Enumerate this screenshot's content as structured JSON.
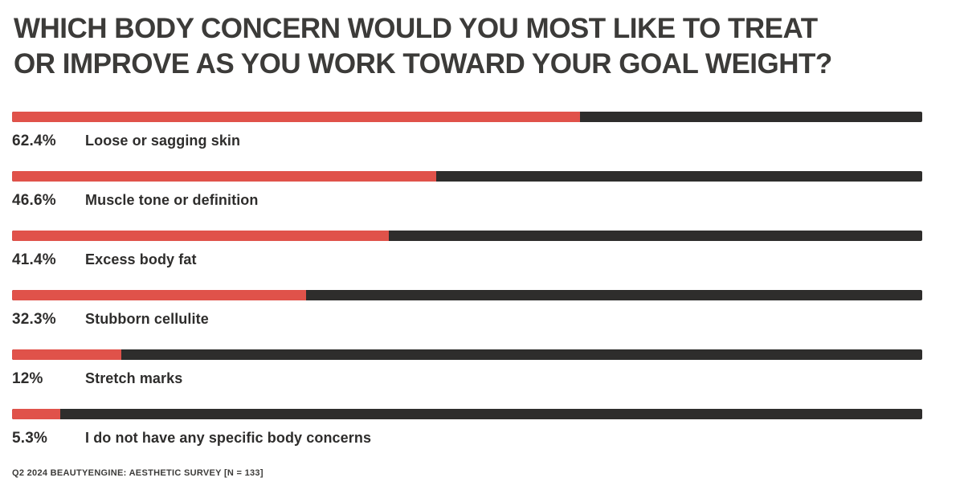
{
  "header": {
    "title": "WHICH BODY CONCERN WOULD YOU MOST LIKE TO TREAT OR IMPROVE AS YOU WORK TOWARD YOUR GOAL WEIGHT?"
  },
  "footer": {
    "source": "Q2 2024 BEAUTYENGINE: AESTHETIC SURVEY [n = 133]"
  },
  "colors": {
    "bar_fill": "#e0524a",
    "bar_track": "#2e2d2c",
    "title_text": "#3c3b39",
    "label_text": "#2e2d2c",
    "background": "#ffffff"
  },
  "chart_data": {
    "type": "bar",
    "orientation": "horizontal",
    "title": "WHICH BODY CONCERN WOULD YOU MOST LIKE TO TREAT OR IMPROVE AS YOU WORK TOWARD YOUR GOAL WEIGHT?",
    "categories": [
      "Loose or sagging skin",
      "Muscle tone or definition",
      "Excess body fat",
      "Stubborn cellulite",
      "Stretch marks",
      "I do not have any specific body concerns"
    ],
    "values": [
      62.4,
      46.6,
      41.4,
      32.3,
      12,
      5.3
    ],
    "value_labels": [
      "62.4%",
      "46.6%",
      "41.4%",
      "32.3%",
      "12%",
      "5.3%"
    ],
    "xlim": [
      0,
      100
    ],
    "grid": false,
    "legend": false,
    "annotations": "Q2 2024 BEAUTYENGINE: AESTHETIC SURVEY [n = 133]"
  }
}
